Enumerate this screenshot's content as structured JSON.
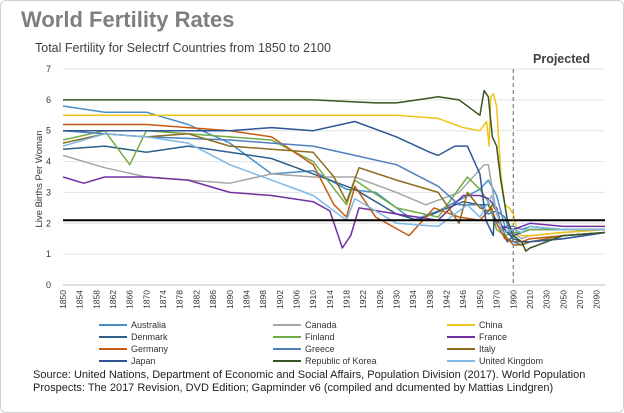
{
  "chart_data": {
    "type": "line",
    "title": "World Fertility Rates",
    "subtitle": "Total Fertility  for Selectrf Countries from 1850 to 2100",
    "annotation": "Projected",
    "ylabel": "Live Births Per Woman",
    "xlabel": "",
    "ylim": [
      0,
      7
    ],
    "xlim": [
      1850,
      2100
    ],
    "yticks": [
      "0",
      "1",
      "2",
      "3",
      "4",
      "5",
      "6",
      "7"
    ],
    "xticks": [
      "1850",
      "1854",
      "1858",
      "1862",
      "1866",
      "1870",
      "1874",
      "1878",
      "1882",
      "1886",
      "1890",
      "1894",
      "1898",
      "1902",
      "1906",
      "1910",
      "1914",
      "1918",
      "1922",
      "1926",
      "1930",
      "1934",
      "1938",
      "1942",
      "1946",
      "1950",
      "1970",
      "1990",
      "2010",
      "2030",
      "2050",
      "2070",
      "2090"
    ],
    "projection_start": 1990,
    "reference_line": 2.1,
    "series": [
      {
        "name": "Australia",
        "color": "#4a90c8",
        "points": [
          [
            1850,
            5.8
          ],
          [
            1860,
            5.6
          ],
          [
            1870,
            5.6
          ],
          [
            1880,
            5.2
          ],
          [
            1890,
            4.6
          ],
          [
            1900,
            3.6
          ],
          [
            1910,
            3.7
          ],
          [
            1918,
            3.1
          ],
          [
            1925,
            3.0
          ],
          [
            1934,
            2.1
          ],
          [
            1940,
            2.4
          ],
          [
            1950,
            3.1
          ],
          [
            1960,
            3.4
          ],
          [
            1970,
            2.9
          ],
          [
            1980,
            1.9
          ],
          [
            1990,
            1.9
          ],
          [
            2000,
            1.8
          ],
          [
            2010,
            1.9
          ],
          [
            2050,
            1.8
          ],
          [
            2100,
            1.8
          ]
        ]
      },
      {
        "name": "Canada",
        "color": "#a6a6a6",
        "points": [
          [
            1850,
            4.2
          ],
          [
            1860,
            3.8
          ],
          [
            1870,
            3.5
          ],
          [
            1880,
            3.4
          ],
          [
            1890,
            3.3
          ],
          [
            1900,
            3.6
          ],
          [
            1910,
            3.5
          ],
          [
            1920,
            3.5
          ],
          [
            1930,
            3.0
          ],
          [
            1937,
            2.6
          ],
          [
            1945,
            3.0
          ],
          [
            1955,
            3.9
          ],
          [
            1960,
            3.9
          ],
          [
            1970,
            2.3
          ],
          [
            1980,
            1.7
          ],
          [
            1990,
            1.7
          ],
          [
            2000,
            1.5
          ],
          [
            2010,
            1.6
          ],
          [
            2050,
            1.7
          ],
          [
            2100,
            1.8
          ]
        ]
      },
      {
        "name": "China",
        "color": "#f0c419",
        "points": [
          [
            1850,
            5.5
          ],
          [
            1870,
            5.5
          ],
          [
            1890,
            5.5
          ],
          [
            1910,
            5.5
          ],
          [
            1930,
            5.5
          ],
          [
            1940,
            5.4
          ],
          [
            1946,
            5.1
          ],
          [
            1950,
            5.0
          ],
          [
            1958,
            5.3
          ],
          [
            1961,
            4.5
          ],
          [
            1963,
            6.1
          ],
          [
            1966,
            6.2
          ],
          [
            1970,
            5.8
          ],
          [
            1975,
            3.6
          ],
          [
            1980,
            2.6
          ],
          [
            1985,
            2.5
          ],
          [
            1990,
            2.3
          ],
          [
            1995,
            1.7
          ],
          [
            2000,
            1.6
          ],
          [
            2010,
            1.6
          ],
          [
            2050,
            1.7
          ],
          [
            2100,
            1.8
          ]
        ]
      },
      {
        "name": "Denmark",
        "color": "#2e5f8a",
        "points": [
          [
            1850,
            4.4
          ],
          [
            1860,
            4.5
          ],
          [
            1870,
            4.3
          ],
          [
            1880,
            4.5
          ],
          [
            1890,
            4.3
          ],
          [
            1900,
            4.1
          ],
          [
            1910,
            3.6
          ],
          [
            1920,
            3.1
          ],
          [
            1930,
            2.3
          ],
          [
            1935,
            2.1
          ],
          [
            1946,
            2.7
          ],
          [
            1950,
            2.6
          ],
          [
            1960,
            2.6
          ],
          [
            1970,
            2.0
          ],
          [
            1983,
            1.4
          ],
          [
            1990,
            1.6
          ],
          [
            2000,
            1.7
          ],
          [
            2010,
            1.8
          ],
          [
            2050,
            1.8
          ],
          [
            2100,
            1.8
          ]
        ]
      },
      {
        "name": "Finland",
        "color": "#70ad47",
        "points": [
          [
            1850,
            4.7
          ],
          [
            1860,
            5.0
          ],
          [
            1866,
            3.9
          ],
          [
            1870,
            5.0
          ],
          [
            1880,
            4.9
          ],
          [
            1890,
            4.8
          ],
          [
            1900,
            4.7
          ],
          [
            1910,
            4.0
          ],
          [
            1918,
            2.6
          ],
          [
            1920,
            3.4
          ],
          [
            1930,
            2.5
          ],
          [
            1940,
            2.2
          ],
          [
            1947,
            3.5
          ],
          [
            1950,
            3.1
          ],
          [
            1960,
            2.7
          ],
          [
            1970,
            1.8
          ],
          [
            1980,
            1.6
          ],
          [
            1990,
            1.7
          ],
          [
            2000,
            1.7
          ],
          [
            2010,
            1.8
          ],
          [
            2050,
            1.8
          ],
          [
            2100,
            1.8
          ]
        ]
      },
      {
        "name": "France",
        "color": "#7030a0",
        "points": [
          [
            1850,
            3.5
          ],
          [
            1855,
            3.3
          ],
          [
            1860,
            3.5
          ],
          [
            1870,
            3.5
          ],
          [
            1880,
            3.4
          ],
          [
            1890,
            3.0
          ],
          [
            1900,
            2.9
          ],
          [
            1910,
            2.7
          ],
          [
            1914,
            2.4
          ],
          [
            1916,
            1.6
          ],
          [
            1917,
            1.2
          ],
          [
            1919,
            1.6
          ],
          [
            1921,
            2.5
          ],
          [
            1930,
            2.3
          ],
          [
            1940,
            2.1
          ],
          [
            1946,
            2.9
          ],
          [
            1950,
            2.9
          ],
          [
            1960,
            2.8
          ],
          [
            1970,
            2.5
          ],
          [
            1976,
            1.9
          ],
          [
            1990,
            1.8
          ],
          [
            2000,
            1.9
          ],
          [
            2010,
            2.0
          ],
          [
            2050,
            1.9
          ],
          [
            2100,
            1.9
          ]
        ]
      },
      {
        "name": "Germany",
        "color": "#c55a11",
        "points": [
          [
            1850,
            5.2
          ],
          [
            1860,
            5.2
          ],
          [
            1870,
            5.2
          ],
          [
            1880,
            5.1
          ],
          [
            1890,
            5.0
          ],
          [
            1900,
            4.8
          ],
          [
            1910,
            3.9
          ],
          [
            1915,
            2.6
          ],
          [
            1918,
            2.2
          ],
          [
            1920,
            3.2
          ],
          [
            1925,
            2.2
          ],
          [
            1933,
            1.6
          ],
          [
            1939,
            2.5
          ],
          [
            1945,
            2.2
          ],
          [
            1950,
            2.1
          ],
          [
            1964,
            2.5
          ],
          [
            1970,
            2.0
          ],
          [
            1980,
            1.5
          ],
          [
            1990,
            1.4
          ],
          [
            2000,
            1.4
          ],
          [
            2010,
            1.5
          ],
          [
            2050,
            1.6
          ],
          [
            2100,
            1.7
          ]
        ]
      },
      {
        "name": "Greece",
        "color": "#4f81bd",
        "points": [
          [
            1850,
            5.0
          ],
          [
            1870,
            4.8
          ],
          [
            1890,
            4.7
          ],
          [
            1900,
            4.6
          ],
          [
            1910,
            4.5
          ],
          [
            1920,
            4.2
          ],
          [
            1930,
            3.9
          ],
          [
            1940,
            3.2
          ],
          [
            1945,
            2.6
          ],
          [
            1950,
            2.6
          ],
          [
            1960,
            2.3
          ],
          [
            1970,
            2.4
          ],
          [
            1980,
            2.2
          ],
          [
            1990,
            1.4
          ],
          [
            2000,
            1.3
          ],
          [
            2010,
            1.4
          ],
          [
            2050,
            1.5
          ],
          [
            2100,
            1.7
          ]
        ]
      },
      {
        "name": "Italy",
        "color": "#8c6d1f",
        "points": [
          [
            1850,
            4.6
          ],
          [
            1860,
            4.9
          ],
          [
            1870,
            4.8
          ],
          [
            1880,
            4.9
          ],
          [
            1890,
            4.5
          ],
          [
            1900,
            4.4
          ],
          [
            1910,
            4.3
          ],
          [
            1915,
            3.5
          ],
          [
            1918,
            2.7
          ],
          [
            1921,
            3.8
          ],
          [
            1930,
            3.4
          ],
          [
            1940,
            3.0
          ],
          [
            1945,
            2.0
          ],
          [
            1947,
            3.0
          ],
          [
            1950,
            2.5
          ],
          [
            1960,
            2.4
          ],
          [
            1965,
            2.6
          ],
          [
            1970,
            2.4
          ],
          [
            1980,
            1.6
          ],
          [
            1990,
            1.3
          ],
          [
            2000,
            1.3
          ],
          [
            2010,
            1.4
          ],
          [
            2050,
            1.6
          ],
          [
            2100,
            1.7
          ]
        ]
      },
      {
        "name": "Japan",
        "color": "#2f5597",
        "points": [
          [
            1850,
            5.0
          ],
          [
            1870,
            5.0
          ],
          [
            1890,
            5.0
          ],
          [
            1900,
            5.1
          ],
          [
            1910,
            5.0
          ],
          [
            1920,
            5.3
          ],
          [
            1930,
            4.8
          ],
          [
            1938,
            4.3
          ],
          [
            1940,
            4.2
          ],
          [
            1944,
            4.5
          ],
          [
            1947,
            4.5
          ],
          [
            1950,
            3.6
          ],
          [
            1957,
            2.1
          ],
          [
            1966,
            1.6
          ],
          [
            1967,
            2.2
          ],
          [
            1970,
            2.1
          ],
          [
            1980,
            1.8
          ],
          [
            1990,
            1.5
          ],
          [
            2000,
            1.4
          ],
          [
            2010,
            1.4
          ],
          [
            2050,
            1.5
          ],
          [
            2100,
            1.7
          ]
        ]
      },
      {
        "name": "Republic of Korea",
        "color": "#375623",
        "points": [
          [
            1850,
            6.0
          ],
          [
            1870,
            6.0
          ],
          [
            1890,
            6.0
          ],
          [
            1910,
            6.0
          ],
          [
            1925,
            5.9
          ],
          [
            1930,
            5.9
          ],
          [
            1935,
            6.0
          ],
          [
            1940,
            6.1
          ],
          [
            1945,
            6.0
          ],
          [
            1950,
            5.5
          ],
          [
            1955,
            6.3
          ],
          [
            1960,
            6.1
          ],
          [
            1965,
            4.8
          ],
          [
            1970,
            4.5
          ],
          [
            1975,
            3.4
          ],
          [
            1983,
            2.1
          ],
          [
            1990,
            1.6
          ],
          [
            2000,
            1.4
          ],
          [
            2005,
            1.1
          ],
          [
            2010,
            1.2
          ],
          [
            2030,
            1.4
          ],
          [
            2050,
            1.6
          ],
          [
            2100,
            1.7
          ]
        ]
      },
      {
        "name": "United Kingdom",
        "color": "#7fb8e6",
        "points": [
          [
            1850,
            4.5
          ],
          [
            1860,
            4.9
          ],
          [
            1870,
            4.8
          ],
          [
            1880,
            4.6
          ],
          [
            1890,
            3.9
          ],
          [
            1900,
            3.4
          ],
          [
            1910,
            2.9
          ],
          [
            1918,
            2.1
          ],
          [
            1920,
            2.8
          ],
          [
            1930,
            2.0
          ],
          [
            1940,
            1.9
          ],
          [
            1947,
            2.6
          ],
          [
            1950,
            2.2
          ],
          [
            1964,
            2.9
          ],
          [
            1970,
            2.4
          ],
          [
            1977,
            1.7
          ],
          [
            1990,
            1.8
          ],
          [
            2000,
            1.7
          ],
          [
            2010,
            1.9
          ],
          [
            2050,
            1.8
          ],
          [
            2100,
            1.8
          ]
        ]
      }
    ]
  },
  "source": "Source: United Nations, Department of Economic and Social Affairs, Population Division (2017). World Population Prospects: The 2017 Revision, DVD Edition; Gapminder v6 (compiled and dcumented by Mattias Lindgren)"
}
